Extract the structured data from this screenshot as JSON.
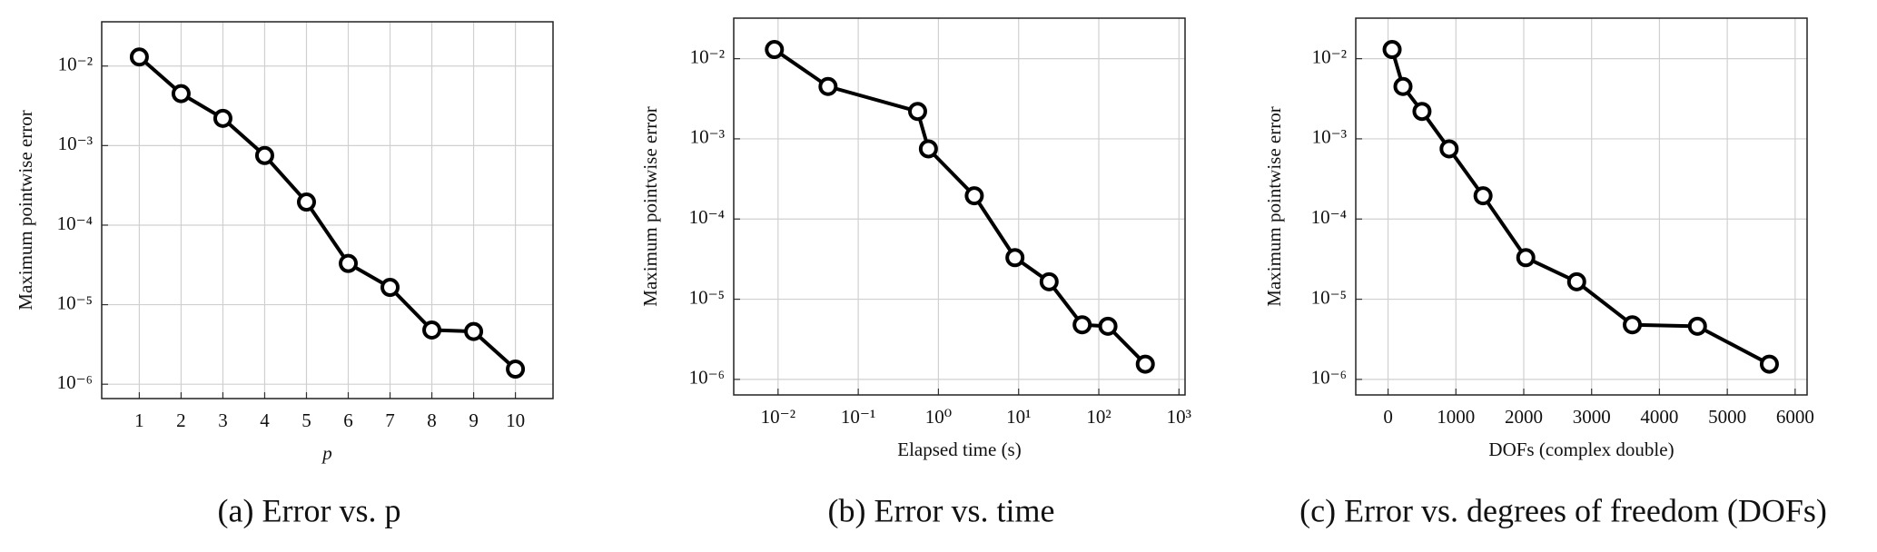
{
  "chart_data": [
    {
      "type": "line",
      "caption": "(a) Error vs. p",
      "x_label": "p",
      "y_label": "Maximum pointwise error",
      "x": [
        1,
        2,
        3,
        4,
        5,
        6,
        7,
        8,
        9,
        10
      ],
      "values": [
        0.013,
        0.0045,
        0.0022,
        0.00075,
        0.000195,
        3.3e-05,
        1.65e-05,
        4.8e-06,
        4.6e-06,
        1.55e-06
      ],
      "color": "#000000",
      "log_x": false,
      "log_y": true,
      "grid": true,
      "xlim": [
        0.1,
        10.9
      ],
      "xticks": [
        1,
        2,
        3,
        4,
        5,
        6,
        7,
        8,
        9,
        10
      ],
      "ylim": [
        6.6e-07,
        0.036
      ],
      "yticks": [
        {
          "value": 1e-06,
          "label": "10⁻⁶"
        },
        {
          "value": 1e-05,
          "label": "10⁻⁵"
        },
        {
          "value": 0.0001,
          "label": "10⁻⁴"
        },
        {
          "value": 0.001,
          "label": "10⁻³"
        },
        {
          "value": 0.01,
          "label": "10⁻²"
        }
      ]
    },
    {
      "type": "line",
      "caption": "(b) Error vs. time",
      "x_label": "Elapsed time (s)",
      "y_label": "Maximum pointwise error",
      "x": [
        0.009,
        0.042,
        0.55,
        0.75,
        2.8,
        9,
        24,
        62,
        130,
        380
      ],
      "values": [
        0.013,
        0.0045,
        0.0022,
        0.00075,
        0.000195,
        3.3e-05,
        1.65e-05,
        4.8e-06,
        4.6e-06,
        1.55e-06
      ],
      "color": "#000000",
      "log_x": true,
      "log_y": true,
      "grid": true,
      "xlim": [
        0.0028,
        1190
      ],
      "xticks": [
        {
          "value": 0.01,
          "label": "10⁻²"
        },
        {
          "value": 0.1,
          "label": "10⁻¹"
        },
        {
          "value": 1,
          "label": "10⁰"
        },
        {
          "value": 10,
          "label": "10¹"
        },
        {
          "value": 100,
          "label": "10²"
        },
        {
          "value": 1000,
          "label": "10³"
        }
      ],
      "ylim": [
        6.4e-07,
        0.032
      ],
      "yticks": [
        {
          "value": 1e-06,
          "label": "10⁻⁶"
        },
        {
          "value": 1e-05,
          "label": "10⁻⁵"
        },
        {
          "value": 0.0001,
          "label": "10⁻⁴"
        },
        {
          "value": 0.001,
          "label": "10⁻³"
        },
        {
          "value": 0.01,
          "label": "10⁻²"
        }
      ]
    },
    {
      "type": "line",
      "caption": "(c) Error vs. degrees of freedom (DOFs)",
      "x_label": "DOFs (complex double)",
      "y_label": "Maximum pointwise error",
      "x": [
        60,
        220,
        500,
        900,
        1400,
        2030,
        2780,
        3600,
        4560,
        5620
      ],
      "values": [
        0.013,
        0.0045,
        0.0022,
        0.00075,
        0.000195,
        3.3e-05,
        1.65e-05,
        4.8e-06,
        4.6e-06,
        1.55e-06
      ],
      "color": "#000000",
      "log_x": false,
      "log_y": true,
      "grid": true,
      "xlim": [
        -476,
        6176
      ],
      "xticks": [
        0,
        1000,
        2000,
        3000,
        4000,
        5000,
        6000
      ],
      "ylim": [
        6.4e-07,
        0.032
      ],
      "yticks": [
        {
          "value": 1e-06,
          "label": "10⁻⁶"
        },
        {
          "value": 1e-05,
          "label": "10⁻⁵"
        },
        {
          "value": 0.0001,
          "label": "10⁻⁴"
        },
        {
          "value": 0.001,
          "label": "10⁻³"
        },
        {
          "value": 0.01,
          "label": "10⁻²"
        }
      ]
    }
  ]
}
